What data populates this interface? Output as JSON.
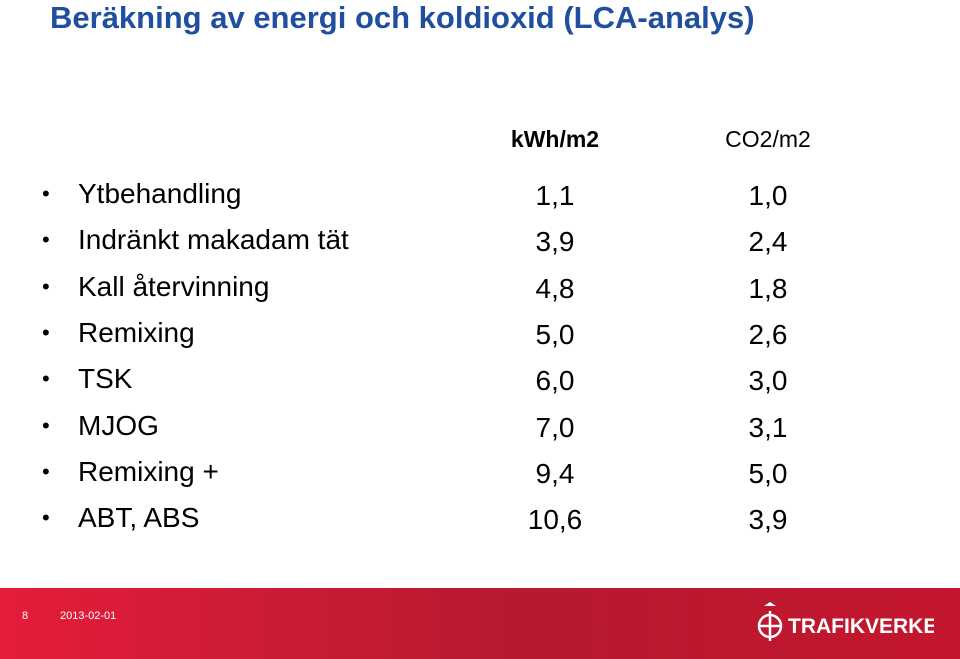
{
  "header": {
    "title": "Beräkning av energi och koldioxid (LCA-analys)"
  },
  "table": {
    "columns": [
      "kWh/m2",
      "CO2/m2"
    ],
    "rows": [
      [
        "Ytbehandling",
        "1,1",
        "1,0"
      ],
      [
        "Indränkt makadam tät",
        "3,9",
        "2,4"
      ],
      [
        "Kall återvinning",
        "4,8",
        "1,8"
      ],
      [
        "Remixing",
        "5,0",
        "2,6"
      ],
      [
        "TSK",
        "6,0",
        "3,0"
      ],
      [
        "MJOG",
        "7,0",
        "3,1"
      ],
      [
        "Remixing +",
        "9,4",
        "5,0"
      ],
      [
        "ABT, ABS",
        "10,6",
        "3,9"
      ]
    ]
  },
  "footer": {
    "page": "8",
    "date": "2013-02-01",
    "logo": "TRAFIKVERKET"
  }
}
